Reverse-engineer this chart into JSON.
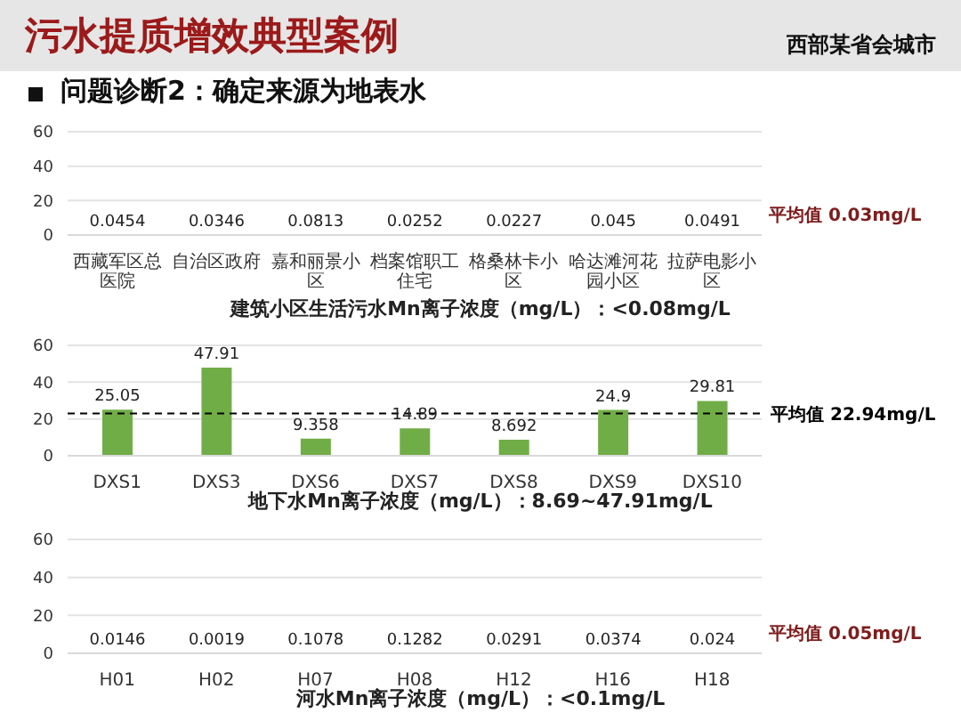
{
  "chart_data": [
    {
      "type": "bar",
      "title": "污水提质增效典型案例",
      "annotations": [
        "问题诊断2：确定来源为地表水",
        "西部某省会城市",
        "平均值 0.03mg/L"
      ],
      "xlabel": "建筑小区生活污水Mn离子浓度（mg/L）：<0.08mg/L",
      "categories": [
        "西藏军区总医院",
        "自治区政府",
        "嘉和丽景小区",
        "档案馆职工住宅",
        "格桑林卡小区",
        "哈达滩河花园小区",
        "拉萨电影小区"
      ],
      "values": [
        0.0454,
        0.0346,
        0.0813,
        0.0252,
        0.0227,
        0.045,
        0.0491
      ],
      "color": "#70ad47",
      "ylim": [
        0,
        60
      ],
      "yticks": [
        0,
        20,
        40,
        60
      ],
      "grid": "y",
      "data_labels": true
    },
    {
      "type": "bar",
      "xlabel": "地下水Mn离子浓度（mg/L）：8.69~47.91mg/L",
      "categories": [
        "DXS1",
        "DXS3",
        "DXS6",
        "DXS7",
        "DXS8",
        "DXS9",
        "DXS10"
      ],
      "values": [
        25.05,
        47.91,
        9.358,
        14.89,
        8.692,
        24.9,
        29.81
      ],
      "color": "#70ad47",
      "ylim": [
        0,
        60
      ],
      "yticks": [
        0,
        20,
        40,
        60
      ],
      "grid": "y",
      "data_labels": true,
      "ref_lines": [
        {
          "axis": "y",
          "value": 22.94,
          "label": "平均值 22.94mg/L",
          "color": "#000000",
          "line_style": "dashed"
        }
      ]
    },
    {
      "type": "bar",
      "xlabel": "河水Mn离子浓度（mg/L）：<0.1mg/L",
      "annotations": [
        "平均值 0.05mg/L"
      ],
      "categories": [
        "H01",
        "H02",
        "H07",
        "H08",
        "H12",
        "H16",
        "H18"
      ],
      "values": [
        0.0146,
        0.0019,
        0.1078,
        0.1282,
        0.0291,
        0.0374,
        0.024
      ],
      "color": "#70ad47",
      "ylim": [
        0,
        60
      ],
      "yticks": [
        0,
        20,
        40,
        60
      ],
      "grid": "y",
      "data_labels": true
    }
  ]
}
